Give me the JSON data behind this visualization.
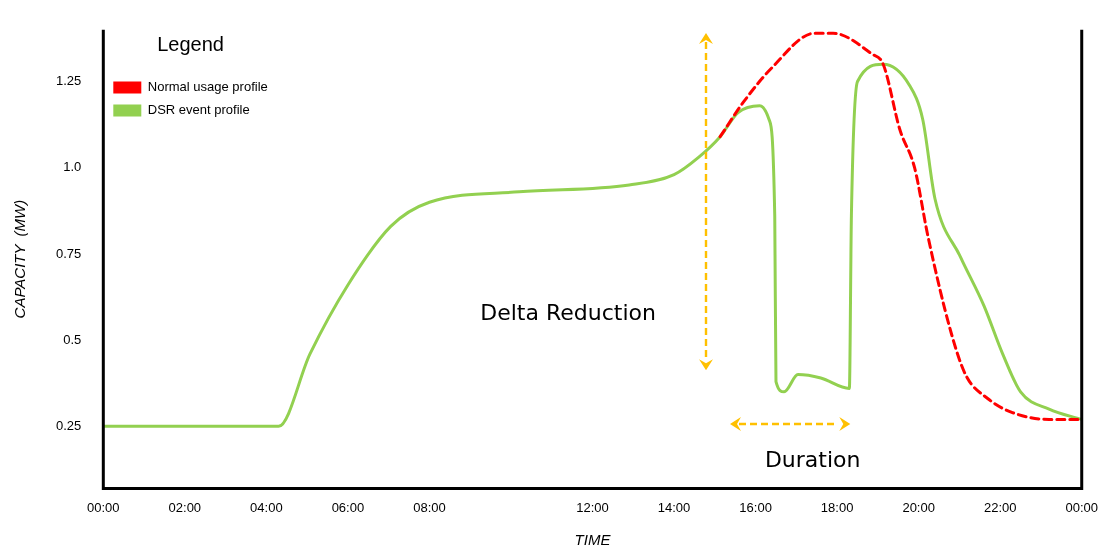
{
  "chart_data": {
    "type": "line",
    "xlabel": "TIME",
    "ylabel": "CAPACITY  (MW)",
    "legend_title": "Legend",
    "legend": "top left",
    "grid": false,
    "marker": "none",
    "xlim": [
      0,
      24
    ],
    "ylim": [
      0.07,
      1.4
    ],
    "xticks": [
      {
        "value": 0,
        "label": "00:00"
      },
      {
        "value": 2,
        "label": "02:00"
      },
      {
        "value": 4,
        "label": "04:00"
      },
      {
        "value": 6,
        "label": "06:00"
      },
      {
        "value": 8,
        "label": "08:00"
      },
      {
        "value": 12,
        "label": "12:00"
      },
      {
        "value": 14,
        "label": "14:00"
      },
      {
        "value": 16,
        "label": "16:00"
      },
      {
        "value": 18,
        "label": "18:00"
      },
      {
        "value": 20,
        "label": "20:00"
      },
      {
        "value": 22,
        "label": "22:00"
      },
      {
        "value": 24,
        "label": "00:00"
      }
    ],
    "yticks": [
      0.25,
      0.5,
      0.75,
      {
        "value": 1,
        "label": "1.0"
      },
      1.25
    ],
    "annotations": [
      "Delta Reduction",
      "Duration"
    ],
    "series": [
      {
        "name": "Normal usage profile",
        "color": "#ff0000",
        "line_style": "dashed",
        "x": [
          15.13,
          15.7,
          16.4,
          17.45,
          17.9,
          18.85,
          19.13,
          19.54,
          19.9,
          20.23,
          20.8,
          21.15,
          21.7,
          22.3,
          23.2,
          24
        ],
        "values": [
          1.09,
          1.19,
          1.29,
          1.39,
          1.39,
          1.33,
          1.3,
          1.11,
          1.0,
          0.8,
          0.52,
          0.4,
          0.33,
          0.29,
          0.27,
          0.27
        ]
      },
      {
        "name": "DSR event profile",
        "color": "#92d050",
        "line_style": "solid",
        "x": [
          0,
          4.3,
          5.07,
          6,
          7.05,
          8,
          10.2,
          12.9,
          14,
          14.6,
          15.13,
          15.57,
          16.1,
          16.33,
          16.47,
          16.5,
          16.7,
          17.04,
          17.6,
          18.3,
          18.35,
          18.5,
          19.13,
          19.77,
          20.1,
          20.4,
          21.03,
          21.6,
          22.06,
          22.5,
          23.2,
          24
        ],
        "values": [
          0.25,
          0.25,
          0.46,
          0.66,
          0.83,
          0.9,
          0.93,
          0.95,
          0.98,
          1.03,
          1.09,
          1.16,
          1.18,
          1.14,
          0.86,
          0.38,
          0.35,
          0.4,
          0.39,
          0.36,
          0.86,
          1.25,
          1.3,
          1.24,
          1.14,
          0.91,
          0.74,
          0.6,
          0.46,
          0.35,
          0.3,
          0.27
        ]
      }
    ]
  }
}
